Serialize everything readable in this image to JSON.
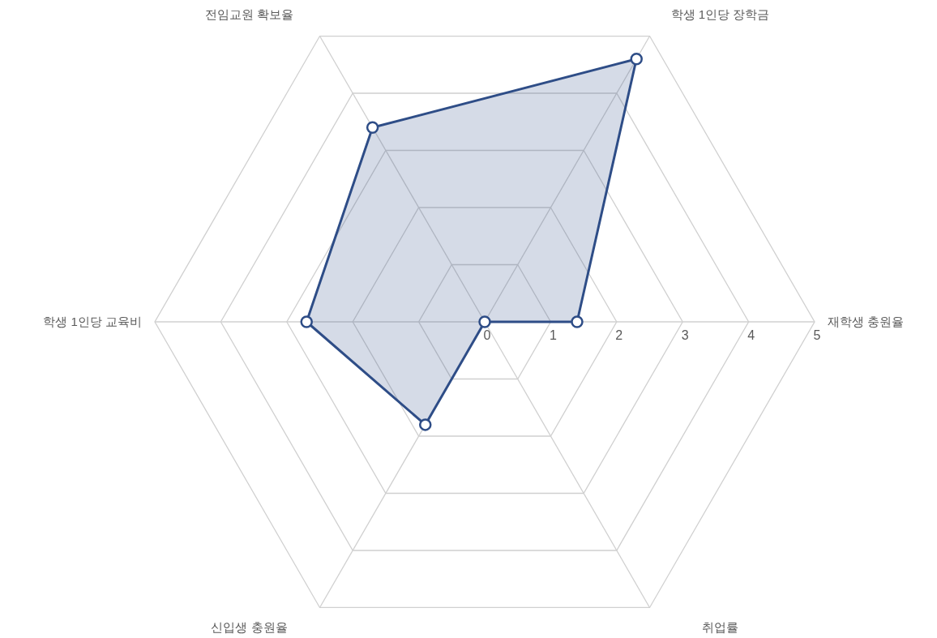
{
  "chart_data": {
    "type": "radar",
    "categories": [
      "학생 1인당 장학금",
      "재학생 충원율",
      "취업률",
      "신입생 충원율",
      "학생 1인당 교육비",
      "전임교원 확보율"
    ],
    "series": [
      {
        "color": "#2e4d87",
        "values": [
          4.6,
          1.4,
          0,
          1.8,
          2.7,
          3.4
        ]
      }
    ],
    "ylim": [
      0,
      5
    ],
    "yticks": [
      0,
      1,
      2,
      3,
      4,
      5
    ],
    "marker": "circle"
  }
}
